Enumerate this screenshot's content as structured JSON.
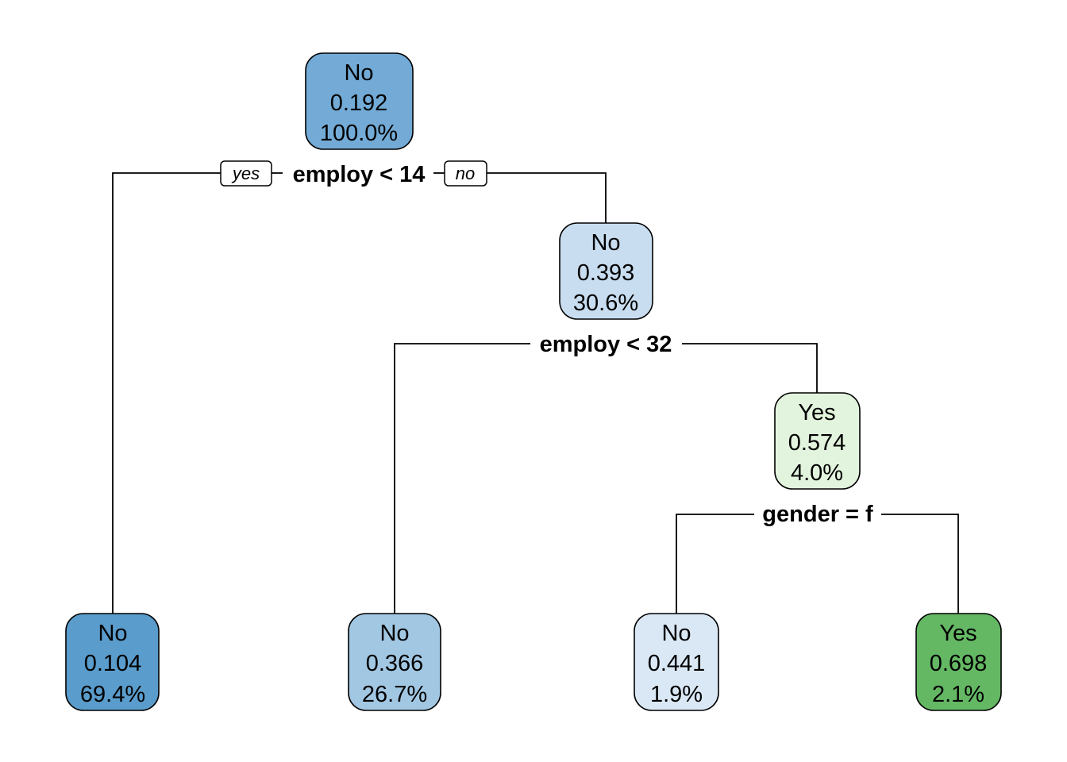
{
  "tree": {
    "branch_labels": {
      "yes": "yes",
      "no": "no"
    },
    "splits": [
      {
        "id": "s1",
        "label": "employ < 14"
      },
      {
        "id": "s2",
        "label": "employ < 32"
      },
      {
        "id": "s3",
        "label": "gender = f"
      }
    ],
    "nodes": [
      {
        "id": "n1",
        "class": "No",
        "prob": "0.192",
        "pct": "100.0%",
        "fill": "#73abd6"
      },
      {
        "id": "n2",
        "class": "No",
        "prob": "0.393",
        "pct": "30.6%",
        "fill": "#c9ddf0"
      },
      {
        "id": "n3",
        "class": "Yes",
        "prob": "0.574",
        "pct": "4.0%",
        "fill": "#e2f4dd"
      },
      {
        "id": "n4",
        "class": "No",
        "prob": "0.104",
        "pct": "69.4%",
        "fill": "#5a9ccb"
      },
      {
        "id": "n5",
        "class": "No",
        "prob": "0.366",
        "pct": "26.7%",
        "fill": "#a2c7e3"
      },
      {
        "id": "n6",
        "class": "No",
        "prob": "0.441",
        "pct": "1.9%",
        "fill": "#dae8f5"
      },
      {
        "id": "n7",
        "class": "Yes",
        "prob": "0.698",
        "pct": "2.1%",
        "fill": "#64b864"
      }
    ]
  }
}
